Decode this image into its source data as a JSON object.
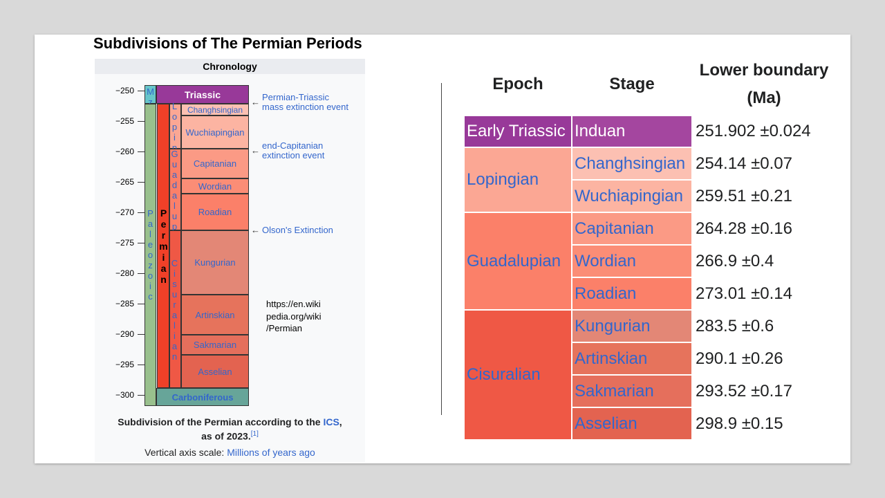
{
  "title": "Subdivisions of The Permian Periods",
  "chronology": {
    "header": "Chronology",
    "ticks": [
      {
        "value": -250,
        "label": "−250"
      },
      {
        "value": -255,
        "label": "−255"
      },
      {
        "value": -260,
        "label": "−260"
      },
      {
        "value": -265,
        "label": "−265"
      },
      {
        "value": -270,
        "label": "−270"
      },
      {
        "value": -275,
        "label": "−275"
      },
      {
        "value": -280,
        "label": "−280"
      },
      {
        "value": -285,
        "label": "−285"
      },
      {
        "value": -290,
        "label": "−290"
      },
      {
        "value": -295,
        "label": "−295"
      },
      {
        "value": -300,
        "label": "−300"
      }
    ],
    "era_above": "Mz",
    "era": "Paleozoic",
    "period": "Permian",
    "period_above": "Triassic",
    "period_below": "Carboniferous",
    "epochs": [
      "Lopin",
      "Guadalup",
      "Cisuralian"
    ],
    "stages": [
      "Changhsingian",
      "Wuchiapingian",
      "Capitanian",
      "Wordian",
      "Roadian",
      "Kungurian",
      "Artinskian",
      "Sakmarian",
      "Asselian"
    ],
    "annotations": [
      [
        "Permian-Triassic",
        "mass extinction event"
      ],
      [
        "end-Capitanian",
        "extinction event"
      ],
      [
        "Olson's Extinction"
      ]
    ],
    "caption": {
      "line1": [
        "Subdivision of the Permian according to the ",
        "ICS",
        ","
      ],
      "line2": [
        "as of 2023.",
        "[1]"
      ],
      "line3": [
        "Vertical axis scale: ",
        "Millions of years ago"
      ]
    }
  },
  "source": [
    "https://en.wiki",
    "pedia.org/wiki",
    "/Permian"
  ],
  "table": {
    "headers": [
      "Epoch",
      "Stage",
      [
        "Lower boundary",
        "(Ma)"
      ]
    ],
    "epochs": [
      {
        "name": "Early Triassic",
        "color": "#983999",
        "stages": [
          {
            "name": "Induan",
            "color": "#a4469f",
            "boundary": "251.902 ±0.024"
          }
        ]
      },
      {
        "name": "Lopingian",
        "color": "#fba794",
        "stages": [
          {
            "name": "Changhsingian",
            "color": "#fcc0b2",
            "boundary": "254.14 ±0.07"
          },
          {
            "name": "Wuchiapingian",
            "color": "#fcb4a2",
            "boundary": "259.51 ±0.21"
          }
        ]
      },
      {
        "name": "Guadalupian",
        "color": "#fb8069",
        "stages": [
          {
            "name": "Capitanian",
            "color": "#fb9a85",
            "boundary": "264.28 ±0.16"
          },
          {
            "name": "Wordian",
            "color": "#fb8d76",
            "boundary": "266.9 ±0.4"
          },
          {
            "name": "Roadian",
            "color": "#fb8069",
            "boundary": "273.01 ±0.14"
          }
        ]
      },
      {
        "name": "Cisuralian",
        "color": "#ef5845",
        "stages": [
          {
            "name": "Kungurian",
            "color": "#e38776",
            "boundary": "283.5 ±0.6"
          },
          {
            "name": "Artinskian",
            "color": "#e6735c",
            "boundary": "290.1 ±0.26"
          },
          {
            "name": "Sakmarian",
            "color": "#e56f5c",
            "boundary": "293.52 ±0.17"
          },
          {
            "name": "Asselian",
            "color": "#e36350",
            "boundary": "298.9 ±0.15"
          }
        ]
      }
    ]
  }
}
